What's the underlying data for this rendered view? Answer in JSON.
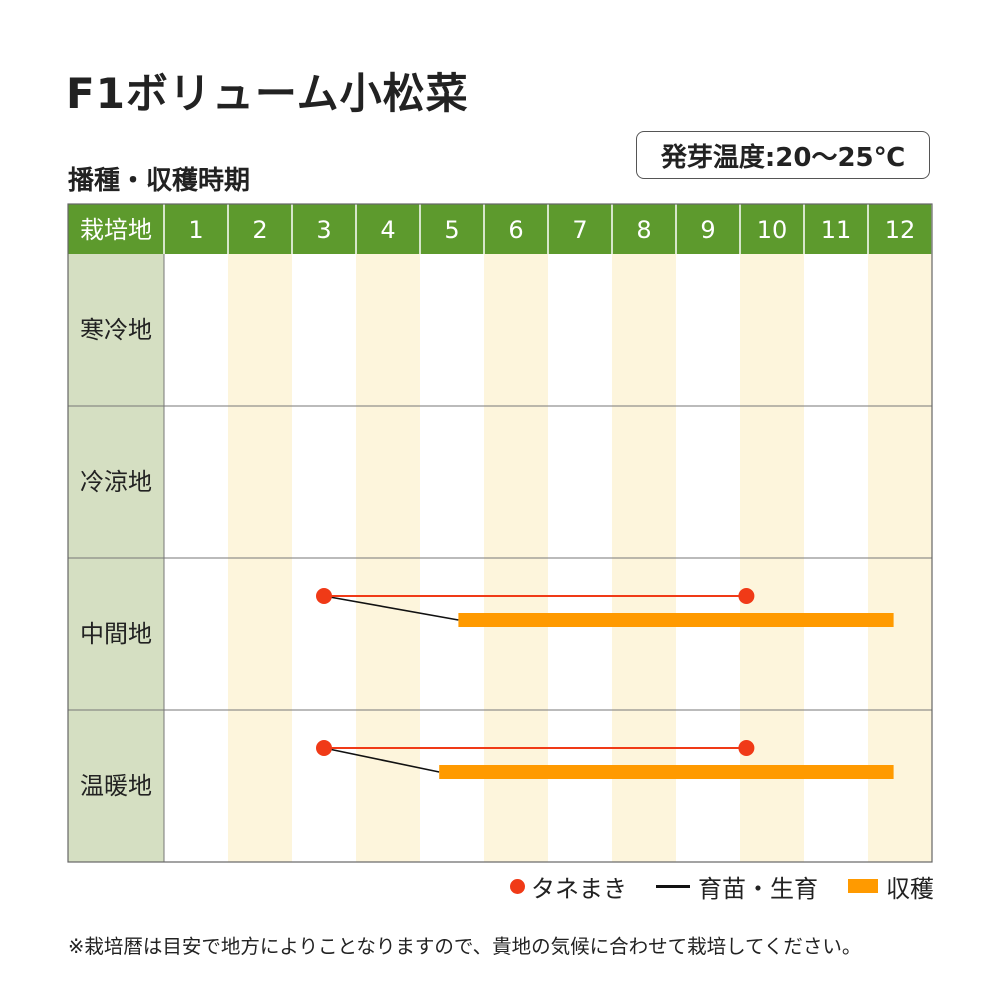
{
  "title": "F1ボリューム小松菜",
  "subtitle": "播種・収穫時期",
  "germination_temp": "発芽温度:20～25℃",
  "colors": {
    "header_green": "#5d9a2d",
    "region_col": "#d5dfc2",
    "alt_month": "#fdf5dc",
    "sowing": "#f03a17",
    "growing": "#111111",
    "harvest": "#ff9a00"
  },
  "chart_data": {
    "type": "table",
    "header_label": "栽培地",
    "months": [
      "1",
      "2",
      "3",
      "4",
      "5",
      "6",
      "7",
      "8",
      "9",
      "10",
      "11",
      "12"
    ],
    "regions": [
      {
        "name": "寒冷地",
        "schedules": []
      },
      {
        "name": "冷涼地",
        "schedules": []
      },
      {
        "name": "中間地",
        "schedules": [
          {
            "sowing": [
              3,
              9.6
            ],
            "harvest": [
              5.1,
              11.9
            ]
          }
        ]
      },
      {
        "name": "温暖地",
        "schedules": [
          {
            "sowing": [
              3,
              9.6
            ],
            "harvest": [
              4.8,
              11.9
            ]
          }
        ]
      }
    ],
    "legend": {
      "sowing": "タネまき",
      "growing": "育苗・生育",
      "harvest": "収穫"
    }
  },
  "footnote": "※栽培暦は目安で地方によりことなりますので、貴地の気候に合わせて栽培してください。"
}
